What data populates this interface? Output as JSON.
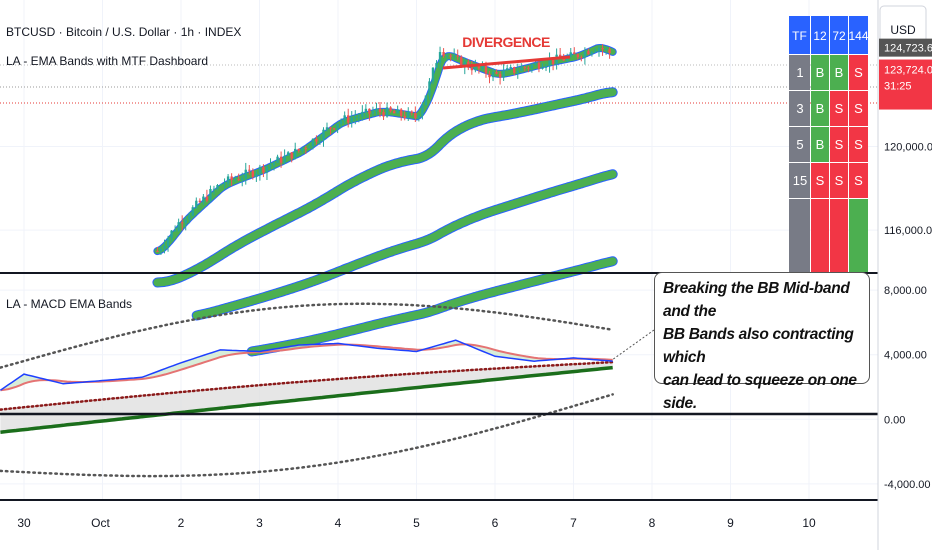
{
  "header": {
    "symbol_line": "BTCUSD · Bitcoin / U.S. Dollar · 1h · INDEX",
    "indicator1": "LA - EMA Bands with MTF Dashboard",
    "indicator2": "LA - MACD EMA Bands"
  },
  "annotation": {
    "divergence": "DIVERGENCE",
    "callout_lines": [
      "Breaking the BB Mid-band and the",
      "BB Bands also contracting which",
      "can lead to squeeze on one side."
    ]
  },
  "dashboard": {
    "headers": [
      "TF",
      "12",
      "72",
      "144"
    ],
    "rows": [
      {
        "tf": "1",
        "cells": [
          "B",
          "B",
          "S"
        ]
      },
      {
        "tf": "3",
        "cells": [
          "B",
          "S",
          "S"
        ]
      },
      {
        "tf": "5",
        "cells": [
          "B",
          "S",
          "S"
        ]
      },
      {
        "tf": "15",
        "cells": [
          "S",
          "S",
          "S"
        ]
      },
      {
        "tf": "",
        "cells": [
          "S",
          "S",
          "B"
        ]
      }
    ],
    "colors": {
      "header": "#2962ff",
      "tf": "#787b86",
      "B": "#4caf50",
      "S": "#f23645"
    }
  },
  "price_axis": {
    "currency": "USD",
    "labels": [
      "120,000.00",
      "116,000.00"
    ],
    "last_price": "124,723.65",
    "current_price": "123,724.05",
    "countdown": "31:25"
  },
  "macd_axis": {
    "labels": [
      "8,000.00",
      "4,000.00",
      "0.00",
      "-4,000.00"
    ]
  },
  "time_axis": {
    "labels": [
      "30",
      "Oct",
      "2",
      "3",
      "4",
      "5",
      "6",
      "7",
      "8",
      "9",
      "10"
    ]
  },
  "colors": {
    "ema_green": "#4caf50",
    "ema_blue": "#2962ff",
    "candle_up": "#26a69a",
    "candle_down": "#ef5350",
    "macd_blue": "#1e40ff",
    "signal_red": "#e57373",
    "bb_dots": "#555555",
    "mid_dots": "#8b1a1a",
    "slow_ema": "#1b6e1b",
    "divergence": "#e53935"
  },
  "chart_data": [
    {
      "type": "line",
      "title": "BTCUSD · Bitcoin / U.S. Dollar · 1h · INDEX",
      "ylim": [
        114000,
        127000
      ],
      "y_ticks": [
        120000,
        116000
      ],
      "x_ticks": [
        "30",
        "Oct",
        "2",
        "3",
        "4",
        "5",
        "6",
        "7",
        "8",
        "9",
        "10"
      ],
      "series": [
        {
          "name": "LA - EMA Bands with MTF Dashboard",
          "x": [
            1.7,
            2,
            2.5,
            3,
            3.5,
            4,
            4.5,
            5,
            5.15,
            5.3,
            5.5,
            6,
            6.3,
            6.6,
            7,
            7.3,
            7.5
          ],
          "values": [
            115000,
            116500,
            118200,
            118900,
            119800,
            121200,
            121700,
            121400,
            122800,
            124700,
            124100,
            123400,
            123700,
            124000,
            124300,
            124800,
            124400
          ]
        }
      ],
      "last_price": 124723.65,
      "current_price": 123724.05
    },
    {
      "type": "line",
      "title": "LA - MACD EMA Bands",
      "ylim": [
        -5000,
        9000
      ],
      "y_ticks": [
        8000,
        4000,
        0,
        -4000
      ],
      "series": [
        {
          "name": "LA - MACD EMA Bands",
          "x": [
            -0.3,
            0,
            0.5,
            1,
            1.5,
            2,
            2.5,
            3,
            3.5,
            4,
            4.5,
            5,
            5.5,
            6,
            6.5,
            7,
            7.5
          ],
          "values": [
            1800,
            2800,
            2200,
            2400,
            2600,
            3500,
            4300,
            4200,
            4600,
            4700,
            4400,
            4200,
            4900,
            3900,
            3600,
            3800,
            3600
          ]
        }
      ]
    }
  ]
}
